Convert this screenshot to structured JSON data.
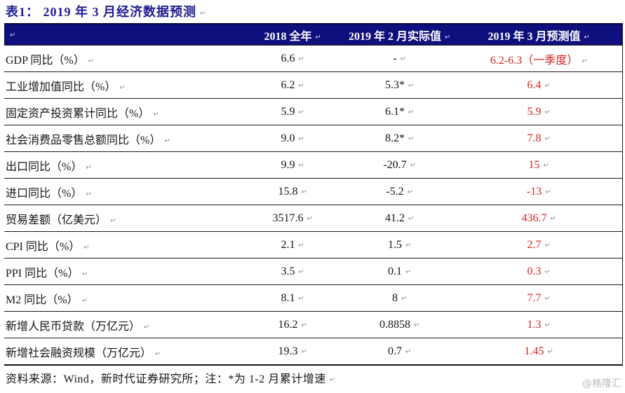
{
  "title": {
    "text": "表1： 2019 年 3 月经济数据预测"
  },
  "table": {
    "paragraph_mark": "↵",
    "columns": [
      "",
      "2018 全年",
      "2019 年 2 月实际值",
      "2019 年 3 月预测值"
    ],
    "rows": [
      {
        "label": "GDP 同比（%）",
        "full_2018": "6.6",
        "feb_2019": "-",
        "mar_2019": "6.2-6.3（一季度）"
      },
      {
        "label": "工业增加值同比（%）",
        "full_2018": "6.2",
        "feb_2019": "5.3*",
        "mar_2019": "6.4"
      },
      {
        "label": "固定资产投资累计同比（%）",
        "full_2018": "5.9",
        "feb_2019": "6.1*",
        "mar_2019": "5.9"
      },
      {
        "label": "社会消费品零售总额同比（%）",
        "full_2018": "9.0",
        "feb_2019": "8.2*",
        "mar_2019": "7.8"
      },
      {
        "label": "出口同比（%）",
        "full_2018": "9.9",
        "feb_2019": "-20.7",
        "mar_2019": "15"
      },
      {
        "label": "进口同比（%）",
        "full_2018": "15.8",
        "feb_2019": "-5.2",
        "mar_2019": "-13"
      },
      {
        "label": "贸易差额（亿美元）",
        "full_2018": "3517.6",
        "feb_2019": "41.2",
        "mar_2019": "436.7"
      },
      {
        "label": "CPI 同比（%）",
        "full_2018": "2.1",
        "feb_2019": "1.5",
        "mar_2019": "2.7"
      },
      {
        "label": "PPI 同比（%）",
        "full_2018": "3.5",
        "feb_2019": "0.1",
        "mar_2019": "0.3"
      },
      {
        "label": "M2 同比（%）",
        "full_2018": "8.1",
        "feb_2019": "8",
        "mar_2019": "7.7"
      },
      {
        "label": "新增人民币贷款（万亿元）",
        "full_2018": "16.2",
        "feb_2019": "0.8858",
        "mar_2019": "1.3"
      },
      {
        "label": "新增社会融资规模（万亿元）",
        "full_2018": "19.3",
        "feb_2019": "0.7",
        "mar_2019": "1.45"
      }
    ]
  },
  "footer": {
    "source_note": "资料来源：Wind，新时代证券研究所；注：*为 1-2 月累计增速"
  },
  "watermark": {
    "text": "@格隆汇"
  },
  "colors": {
    "title_navy": "#1e1e8f",
    "header_bg": "#0f0f7d",
    "header_text": "#ffffff",
    "forecast_red": "#d92424",
    "body_text": "#141414",
    "watermark_gray": "#bcbcbc"
  }
}
